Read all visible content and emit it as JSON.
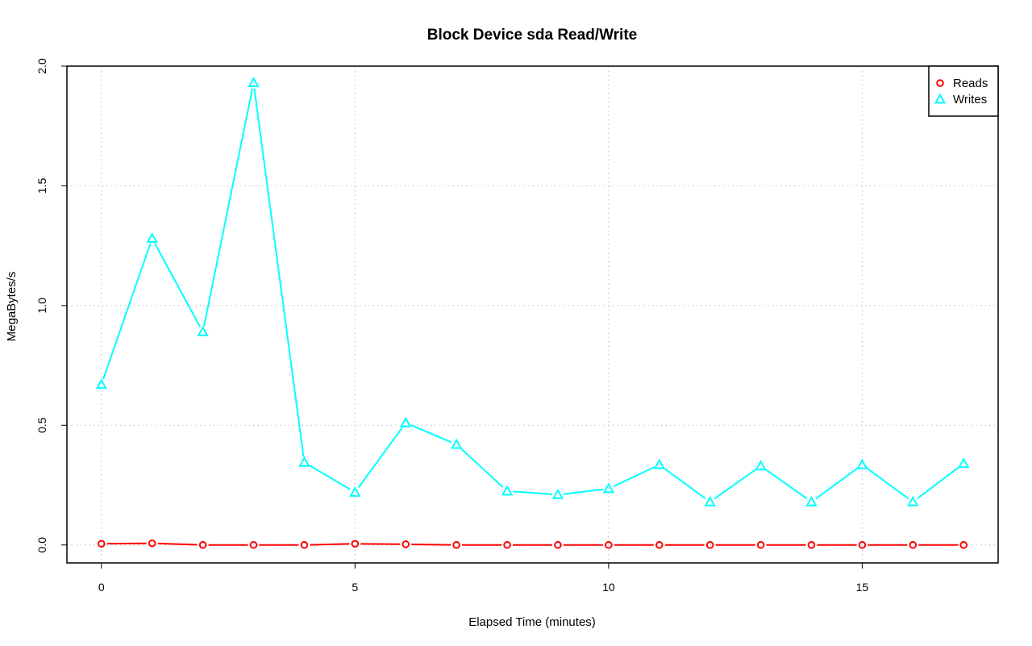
{
  "chart_data": {
    "type": "line",
    "title": "Block Device sda Read/Write",
    "xlabel": "Elapsed Time (minutes)",
    "ylabel": "MegaBytes/s",
    "xlim": [
      -0.68,
      17.68
    ],
    "ylim": [
      -0.075,
      2.0
    ],
    "x_ticks": [
      0,
      5,
      10,
      15
    ],
    "y_ticks": [
      0.0,
      0.5,
      1.0,
      1.5,
      2.0
    ],
    "x_tick_labels": [
      "0",
      "5",
      "10",
      "15"
    ],
    "y_tick_labels": [
      "0.0",
      "0.5",
      "1.0",
      "1.5",
      "2.0"
    ],
    "grid": true,
    "legend_position": "top-right",
    "x": [
      0,
      1,
      2,
      3,
      4,
      5,
      6,
      7,
      8,
      9,
      10,
      11,
      12,
      13,
      14,
      15,
      16,
      17
    ],
    "series": [
      {
        "name": "Reads",
        "color": "#ff0000",
        "marker": "circle",
        "values": [
          0.005,
          0.007,
          0.0,
          0.0,
          0.0,
          0.005,
          0.003,
          0.0,
          0.0,
          0.0,
          0.0,
          0.0,
          0.0,
          0.0,
          0.0,
          0.0,
          0.0,
          0.0
        ]
      },
      {
        "name": "Writes",
        "color": "#00ffff",
        "marker": "triangle",
        "values": [
          0.67,
          1.28,
          0.89,
          1.93,
          0.345,
          0.22,
          0.51,
          0.42,
          0.225,
          0.21,
          0.235,
          0.335,
          0.18,
          0.33,
          0.18,
          0.335,
          0.18,
          0.34
        ]
      }
    ]
  }
}
